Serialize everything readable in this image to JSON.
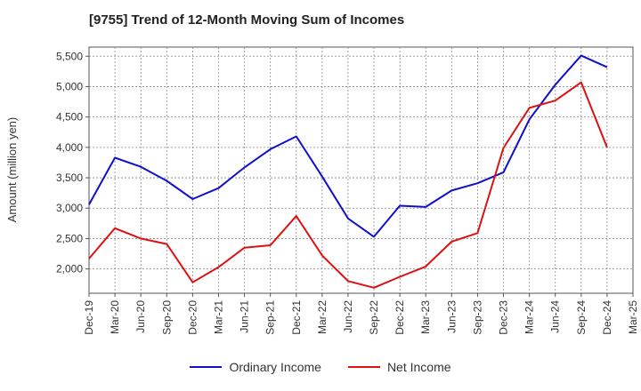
{
  "chart_data": {
    "type": "line",
    "title": "[9755]  Trend of 12-Month Moving Sum of Incomes",
    "xlabel": "",
    "ylabel": "Amount (million yen)",
    "ylim": [
      1600,
      5650
    ],
    "yticks": [
      2000,
      2500,
      3000,
      3500,
      4000,
      4500,
      5000,
      5500
    ],
    "ytick_labels": [
      "2,000",
      "2,500",
      "3,000",
      "3,500",
      "4,000",
      "4,500",
      "5,000",
      "5,500"
    ],
    "categories": [
      "Dec-19",
      "Mar-20",
      "Jun-20",
      "Sep-20",
      "Dec-20",
      "Mar-21",
      "Jun-21",
      "Sep-21",
      "Dec-21",
      "Mar-22",
      "Jun-22",
      "Sep-22",
      "Dec-22",
      "Mar-23",
      "Jun-23",
      "Sep-23",
      "Dec-23",
      "Mar-24",
      "Jun-24",
      "Sep-24",
      "Dec-24",
      "Mar-25"
    ],
    "grid": true,
    "legend_position": "bottom",
    "series": [
      {
        "name": "Ordinary Income",
        "color": "#1010cc",
        "values": [
          3060,
          3830,
          3680,
          3450,
          3150,
          3330,
          3670,
          3970,
          4180,
          3520,
          2830,
          2530,
          3040,
          3020,
          3290,
          3410,
          3590,
          4460,
          5030,
          5510,
          5320,
          null
        ]
      },
      {
        "name": "Net Income",
        "color": "#dd1111",
        "values": [
          2170,
          2670,
          2500,
          2410,
          1780,
          2030,
          2350,
          2390,
          2870,
          2220,
          1800,
          1690,
          1870,
          2040,
          2450,
          2590,
          3990,
          4650,
          4770,
          5070,
          4000,
          null
        ]
      }
    ]
  }
}
